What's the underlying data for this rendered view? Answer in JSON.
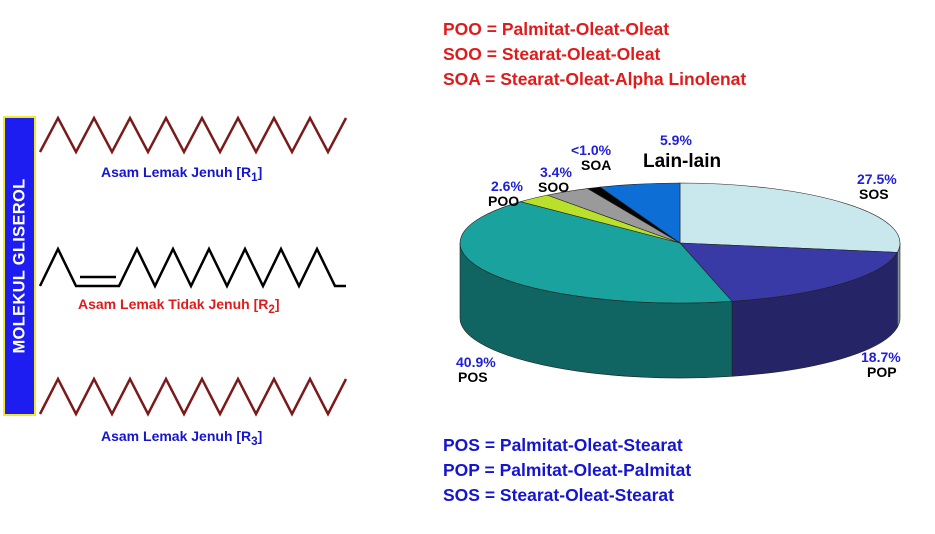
{
  "glycerol": {
    "label": "MOLEKUL GLISEROL"
  },
  "chains": [
    {
      "label": "Asam Lemak Jenuh [R",
      "sub": "1",
      "suffix": "]",
      "color": "#1515d0",
      "line_color": "#7a1a1a"
    },
    {
      "label": "Asam Lemak Tidak Jenuh [R",
      "sub": "2",
      "suffix": "]",
      "color": "#e01b1b",
      "line_color": "#000000"
    },
    {
      "label": "Asam Lemak Jenuh [R",
      "sub": "3",
      "suffix": "]",
      "color": "#1515d0",
      "line_color": "#7a1a1a"
    }
  ],
  "definitions_top": [
    "POO = Palmitat-Oleat-Oleat",
    "SOO = Stearat-Oleat-Oleat",
    "SOA = Stearat-Oleat-Alpha Linolenat"
  ],
  "definitions_bottom": [
    "POS = Palmitat-Oleat-Stearat",
    "POP = Palmitat-Oleat-Palmitat",
    "SOS = Stearat-Oleat-Stearat"
  ],
  "colors": {
    "top_defs": "#e01b1b",
    "bottom_defs": "#1515d0"
  },
  "chart_data": {
    "type": "pie",
    "slices": [
      {
        "name": "SOS",
        "label": "27.5%",
        "value": 27.5,
        "color": "#c9e8ee"
      },
      {
        "name": "POP",
        "label": "18.7%",
        "value": 18.7,
        "color": "#3a3aa6"
      },
      {
        "name": "POS",
        "label": "40.9%",
        "value": 40.9,
        "color": "#1aa39e"
      },
      {
        "name": "POO",
        "label": "2.6%",
        "value": 2.6,
        "color": "#b9e02a"
      },
      {
        "name": "SOO",
        "label": "3.4%",
        "value": 3.4,
        "color": "#9a9a9a"
      },
      {
        "name": "SOA",
        "label": "<1.0%",
        "value": 1.0,
        "color": "#050505"
      },
      {
        "name": "Lain-lain",
        "label": "5.9%",
        "value": 5.9,
        "color": "#0d6fd6"
      }
    ]
  }
}
